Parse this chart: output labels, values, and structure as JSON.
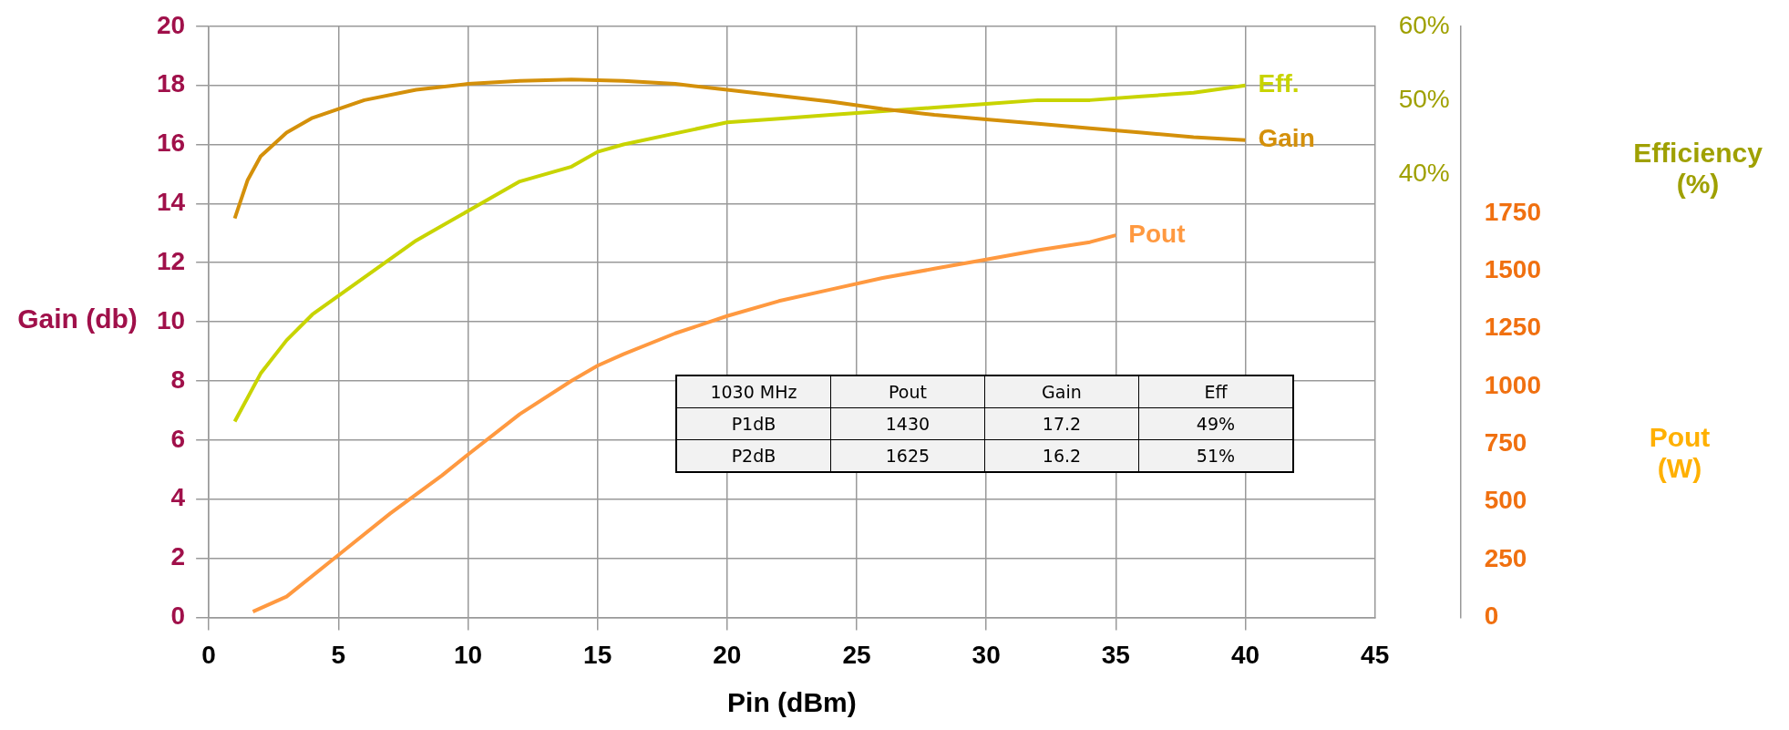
{
  "chart_data": {
    "type": "line",
    "xlabel": "Pin (dBm)",
    "ylabel": "Gain (db)",
    "y2label": "Efficiency (%)",
    "y3label": "Pout (W)",
    "xlim": [
      0,
      45
    ],
    "xticks": [
      0,
      5,
      10,
      15,
      20,
      25,
      30,
      35,
      40,
      45
    ],
    "ylim": [
      0,
      20
    ],
    "yticks": [
      0,
      2,
      4,
      6,
      8,
      10,
      12,
      14,
      16,
      18,
      20
    ],
    "y2lim": [
      -20,
      60
    ],
    "y2ticks": [
      {
        "value": 40,
        "label": "40%"
      },
      {
        "value": 50,
        "label": "50%"
      },
      {
        "value": 60,
        "label": "60%"
      }
    ],
    "y3lim": [
      0,
      2560
    ],
    "y3ticks": [
      0,
      250,
      500,
      750,
      1000,
      1250,
      1500,
      1750
    ],
    "grid": true,
    "legend": false,
    "marker": "none",
    "line_style": "solid",
    "series": [
      {
        "name": "Gain",
        "color": "#d4900a",
        "x": [
          1,
          1.5,
          2,
          3,
          4,
          5,
          6,
          8,
          10,
          12,
          14,
          16,
          18,
          20,
          22,
          24,
          26,
          28,
          30,
          32,
          34,
          36,
          38,
          40
        ],
        "values": [
          13.5,
          14.8,
          15.6,
          16.4,
          16.9,
          17.2,
          17.5,
          17.85,
          18.05,
          18.15,
          18.2,
          18.15,
          18.05,
          17.85,
          17.65,
          17.45,
          17.2,
          17.0,
          16.85,
          16.7,
          16.55,
          16.4,
          16.25,
          16.15
        ]
      },
      {
        "name": "Eff.",
        "color": "#c8d400",
        "axis": "y2",
        "x": [
          1,
          2,
          3,
          4,
          5,
          6,
          8,
          10,
          12,
          14,
          15,
          16,
          18,
          20,
          22,
          24,
          26,
          28,
          30,
          32,
          34,
          36,
          38,
          40
        ],
        "values": [
          6.5,
          13,
          17.5,
          21,
          23.5,
          26,
          31,
          35,
          39,
          41,
          43,
          44,
          45.5,
          47,
          47.5,
          48,
          48.5,
          49,
          49.5,
          50,
          50,
          50.5,
          51,
          52
        ]
      },
      {
        "name": "Pout",
        "color": "#ff9940",
        "axis": "y3",
        "x": [
          1.7,
          3,
          5,
          7,
          9,
          10,
          12,
          14,
          15,
          16,
          18,
          20,
          22,
          24,
          26,
          28,
          30,
          32,
          34,
          35
        ],
        "values": [
          25,
          90,
          270,
          450,
          615,
          705,
          880,
          1025,
          1090,
          1140,
          1230,
          1305,
          1370,
          1420,
          1470,
          1510,
          1550,
          1590,
          1625,
          1655
        ]
      }
    ],
    "annotations": [
      "1030 MHz",
      "Pout",
      "Gain",
      "Eff",
      "P1dB",
      "1430",
      "17.2",
      "49%",
      "P2dB",
      "1625",
      "16.2",
      "51%"
    ]
  }
}
